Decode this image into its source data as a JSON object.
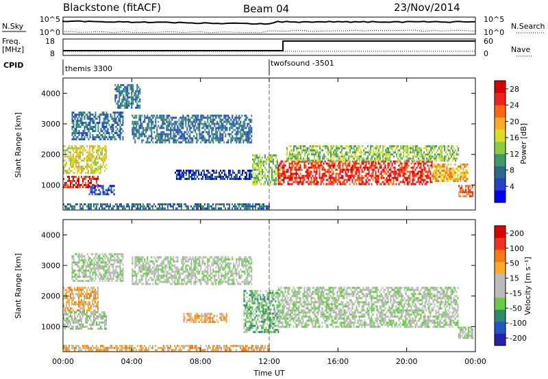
{
  "header": {
    "station": "Blackstone (fitACF)",
    "beam": "Beam 04",
    "date": "23/Nov/2014"
  },
  "top_panels": {
    "nsky_label": "N.Sky",
    "nsky_ticks": [
      "10^5",
      "10^0"
    ],
    "nsearch_label": "N.Search",
    "nsearch_ticks": [
      "10^5",
      "10^0"
    ],
    "freq_label_1": "Freq.",
    "freq_label_2": "[MHz]",
    "freq_ticks": [
      "18",
      "8"
    ],
    "nave_label": "Nave",
    "nave_ticks": [
      "60",
      "0"
    ],
    "cpid_label": "CPID",
    "cpid_segments": [
      {
        "name": "themis 3300",
        "start_hour": 0,
        "end_hour": 12
      },
      {
        "name": "twofsound -3501",
        "start_hour": 12,
        "end_hour": 24
      }
    ]
  },
  "colors": {
    "power": [
      "#0000ff",
      "#2244cc",
      "#2a6b8a",
      "#3f9a6a",
      "#88cc44",
      "#dddd22",
      "#ffaa22",
      "#ff6611",
      "#ee2222",
      "#dd0000"
    ],
    "velocity": [
      "#2222aa",
      "#2255cc",
      "#2a8a6a",
      "#66cc44",
      "#bbbbbb",
      "#bbbbbb",
      "#ffaa22",
      "#ff7711",
      "#ee3322",
      "#dd0000"
    ]
  },
  "chart_data": [
    {
      "type": "heatmap",
      "name": "power",
      "xlabel": "",
      "ylabel": "Slant Range [km]",
      "xlim": [
        0,
        24
      ],
      "ylim": [
        180,
        4500
      ],
      "yticks": [
        1000,
        2000,
        3000,
        4000
      ],
      "colorbar_label": "Power [dB]",
      "colorbar_ticks": [
        "4",
        "8",
        "12",
        "16",
        "20",
        "24",
        "28"
      ],
      "colorbar_range": [
        0,
        30
      ],
      "bands": [
        {
          "t0": 0.0,
          "t1": 2.0,
          "r0": 900,
          "r1": 1300,
          "level": 8
        },
        {
          "t0": 0.0,
          "t1": 2.5,
          "r0": 1400,
          "r1": 2300,
          "level": 5
        },
        {
          "t0": 0.5,
          "t1": 3.5,
          "r0": 2500,
          "r1": 3400,
          "level": 2
        },
        {
          "t0": 3.0,
          "t1": 4.5,
          "r0": 3500,
          "r1": 4300,
          "level": 2
        },
        {
          "t0": 1.5,
          "t1": 3.0,
          "r0": 700,
          "r1": 1000,
          "level": 1
        },
        {
          "t0": 4.0,
          "t1": 11.0,
          "r0": 2400,
          "r1": 3300,
          "level": 2
        },
        {
          "t0": 6.5,
          "t1": 11.0,
          "r0": 1200,
          "r1": 1500,
          "level": 1
        },
        {
          "t0": 0.0,
          "t1": 12.0,
          "r0": 200,
          "r1": 400,
          "level": 2
        },
        {
          "t0": 11.0,
          "t1": 12.5,
          "r0": 1000,
          "r1": 2000,
          "level": 4
        },
        {
          "t0": 12.5,
          "t1": 21.5,
          "r0": 1000,
          "r1": 1800,
          "level": 8
        },
        {
          "t0": 13.0,
          "t1": 23.0,
          "r0": 1800,
          "r1": 2300,
          "level": 4
        },
        {
          "t0": 21.5,
          "t1": 23.5,
          "r0": 1100,
          "r1": 1700,
          "level": 6
        },
        {
          "t0": 23.0,
          "t1": 23.8,
          "r0": 600,
          "r1": 1000,
          "level": 7
        }
      ]
    },
    {
      "type": "heatmap",
      "name": "velocity",
      "xlabel": "Time UT",
      "ylabel": "Slant Range [km]",
      "xlim": [
        0,
        24
      ],
      "ylim": [
        180,
        4500
      ],
      "yticks": [
        1000,
        2000,
        3000,
        4000
      ],
      "xticks": [
        "00:00",
        "04:00",
        "08:00",
        "12:00",
        "16:00",
        "20:00",
        "00:00"
      ],
      "colorbar_label": "Velocity [m s⁻¹]",
      "colorbar_ticks": [
        "200",
        "100",
        "50",
        "15",
        "-15",
        "-50",
        "-100",
        "-200"
      ],
      "bands": [
        {
          "t0": 0.0,
          "t1": 2.0,
          "r0": 1500,
          "r1": 2300,
          "level": 6
        },
        {
          "t0": 0.0,
          "t1": 2.5,
          "r0": 900,
          "r1": 1500,
          "level": 4
        },
        {
          "t0": 0.5,
          "t1": 3.5,
          "r0": 2500,
          "r1": 3400,
          "level": 4
        },
        {
          "t0": 4.0,
          "t1": 11.0,
          "r0": 2400,
          "r1": 3300,
          "level": 4
        },
        {
          "t0": 7.0,
          "t1": 9.5,
          "r0": 1150,
          "r1": 1450,
          "level": 6
        },
        {
          "t0": 0.0,
          "t1": 12.0,
          "r0": 200,
          "r1": 400,
          "level": 6
        },
        {
          "t0": 10.5,
          "t1": 12.5,
          "r0": 800,
          "r1": 2200,
          "level": 3
        },
        {
          "t0": 12.5,
          "t1": 23.0,
          "r0": 1000,
          "r1": 2300,
          "level": 4
        },
        {
          "t0": 23.0,
          "t1": 23.8,
          "r0": 600,
          "r1": 1000,
          "level": 4
        }
      ]
    }
  ]
}
